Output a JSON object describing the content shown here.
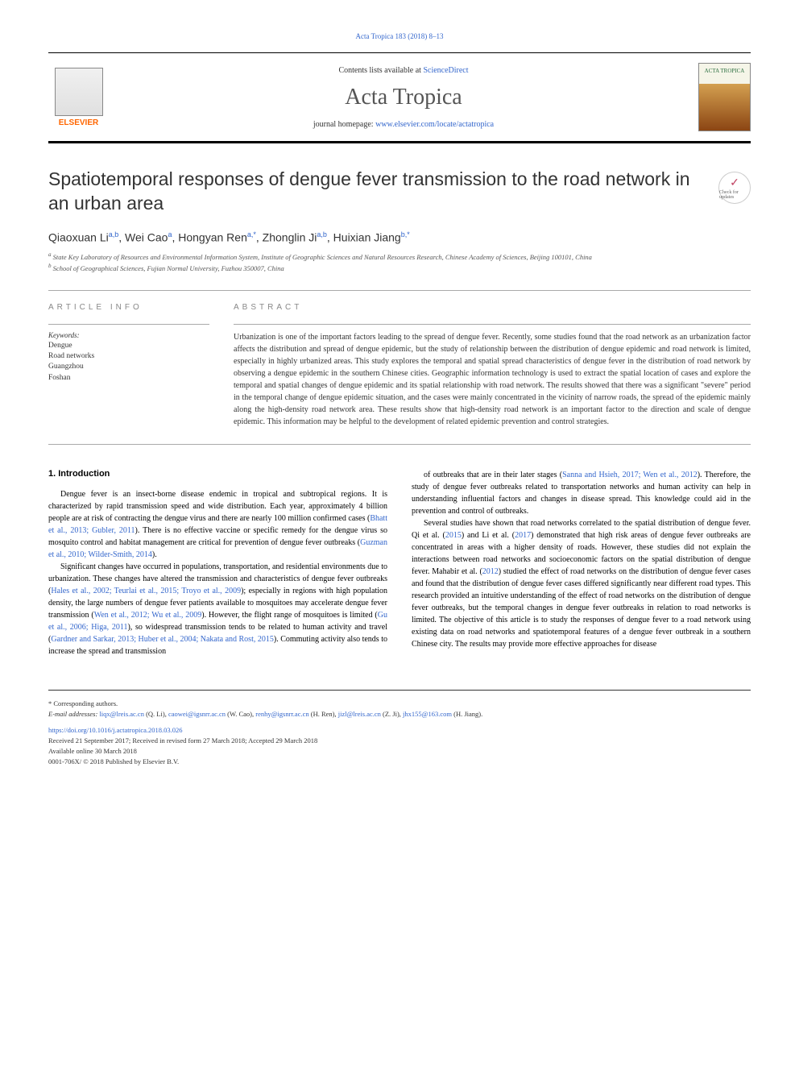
{
  "header": {
    "citation": "Acta Tropica 183 (2018) 8–13",
    "contents_prefix": "Contents lists available at ",
    "contents_link": "ScienceDirect",
    "journal_name": "Acta Tropica",
    "homepage_prefix": "journal homepage: ",
    "homepage_url": "www.elsevier.com/locate/actatropica",
    "publisher": "ELSEVIER",
    "cover_text": "ACTA TROPICA"
  },
  "check_badge": {
    "label": "Check for updates"
  },
  "article": {
    "title": "Spatiotemporal responses of dengue fever transmission to the road network in an urban area",
    "authors_html": "Qiaoxuan Li",
    "authors": [
      {
        "name": "Qiaoxuan Li",
        "sup": "a,b"
      },
      {
        "name": "Wei Cao",
        "sup": "a"
      },
      {
        "name": "Hongyan Ren",
        "sup": "a,*"
      },
      {
        "name": "Zhonglin Ji",
        "sup": "a,b"
      },
      {
        "name": "Huixian Jiang",
        "sup": "b,*"
      }
    ],
    "affiliations": [
      {
        "sup": "a",
        "text": "State Key Laboratory of Resources and Environmental Information System, Institute of Geographic Sciences and Natural Resources Research, Chinese Academy of Sciences, Beijing 100101, China"
      },
      {
        "sup": "b",
        "text": "School of Geographical Sciences, Fujian Normal University, Fuzhou 350007, China"
      }
    ]
  },
  "article_info": {
    "heading": "ARTICLE INFO",
    "keywords_label": "Keywords:",
    "keywords": [
      "Dengue",
      "Road networks",
      "Guangzhou",
      "Foshan"
    ]
  },
  "abstract": {
    "heading": "ABSTRACT",
    "text": "Urbanization is one of the important factors leading to the spread of dengue fever. Recently, some studies found that the road network as an urbanization factor affects the distribution and spread of dengue epidemic, but the study of relationship between the distribution of dengue epidemic and road network is limited, especially in highly urbanized areas. This study explores the temporal and spatial spread characteristics of dengue fever in the distribution of road network by observing a dengue epidemic in the southern Chinese cities. Geographic information technology is used to extract the spatial location of cases and explore the temporal and spatial changes of dengue epidemic and its spatial relationship with road network. The results showed that there was a significant \"severe\" period in the temporal change of dengue epidemic situation, and the cases were mainly concentrated in the vicinity of narrow roads, the spread of the epidemic mainly along the high-density road network area. These results show that high-density road network is an important factor to the direction and scale of dengue epidemic. This information may be helpful to the development of related epidemic prevention and control strategies."
  },
  "body": {
    "intro_heading": "1. Introduction",
    "para1": "Dengue fever is an insect-borne disease endemic in tropical and subtropical regions. It is characterized by rapid transmission speed and wide distribution. Each year, approximately 4 billion people are at risk of contracting the dengue virus and there are nearly 100 million confirmed cases (Bhatt et al., 2013; Gubler, 2011). There is no effective vaccine or specific remedy for the dengue virus so mosquito control and habitat management are critical for prevention of dengue fever outbreaks (Guzman et al., 2010; Wilder-Smith, 2014).",
    "para2": "Significant changes have occurred in populations, transportation, and residential environments due to urbanization. These changes have altered the transmission and characteristics of dengue fever outbreaks (Hales et al., 2002; Teurlai et al., 2015; Troyo et al., 2009); especially in regions with high population density, the large numbers of dengue fever patients available to mosquitoes may accelerate dengue fever transmission (Wen et al., 2012; Wu et al., 2009). However, the flight range of mosquitoes is limited (Gu et al., 2006; Higa, 2011), so widespread transmission tends to be related to human activity and travel (Gardner and Sarkar, 2013; Huber et al., 2004; Nakata and Rost, 2015). Commuting activity also tends to increase the spread and transmission",
    "para3": "of outbreaks that are in their later stages (Sanna and Hsieh, 2017; Wen et al., 2012). Therefore, the study of dengue fever outbreaks related to transportation networks and human activity can help in understanding influential factors and changes in disease spread. This knowledge could aid in the prevention and control of outbreaks.",
    "para4": "Several studies have shown that road networks correlated to the spatial distribution of dengue fever. Qi et al. (2015) and Li et al. (2017) demonstrated that high risk areas of dengue fever outbreaks are concentrated in areas with a higher density of roads. However, these studies did not explain the interactions between road networks and socioeconomic factors on the spatial distribution of dengue fever. Mahabir et al. (2012) studied the effect of road networks on the distribution of dengue fever cases and found that the distribution of dengue fever cases differed significantly near different road types. This research provided an intuitive understanding of the effect of road networks on the distribution of dengue fever outbreaks, but the temporal changes in dengue fever outbreaks in relation to road networks is limited. The objective of this article is to study the responses of dengue fever to a road network using existing data on road networks and spatiotemporal features of a dengue fever outbreak in a southern Chinese city. The results may provide more effective approaches for disease"
  },
  "footer": {
    "corresp_label": "* Corresponding authors.",
    "email_label": "E-mail addresses:",
    "emails": [
      {
        "addr": "liqx@lreis.ac.cn",
        "name": "(Q. Li)"
      },
      {
        "addr": "caowei@igsnrr.ac.cn",
        "name": "(W. Cao)"
      },
      {
        "addr": "renhy@igsnrr.ac.cn",
        "name": "(H. Ren)"
      },
      {
        "addr": "jizl@lreis.ac.cn",
        "name": "(Z. Ji)"
      },
      {
        "addr": "jhx155@163.com",
        "name": "(H. Jiang)"
      }
    ],
    "doi": "https://doi.org/10.1016/j.actatropica.2018.03.026",
    "dates": "Received 21 September 2017; Received in revised form 27 March 2018; Accepted 29 March 2018",
    "available": "Available online 30 March 2018",
    "copyright": "0001-706X/ © 2018 Published by Elsevier B.V."
  },
  "colors": {
    "link": "#3366cc",
    "text": "#333333",
    "elsevier_orange": "#ff6600"
  }
}
